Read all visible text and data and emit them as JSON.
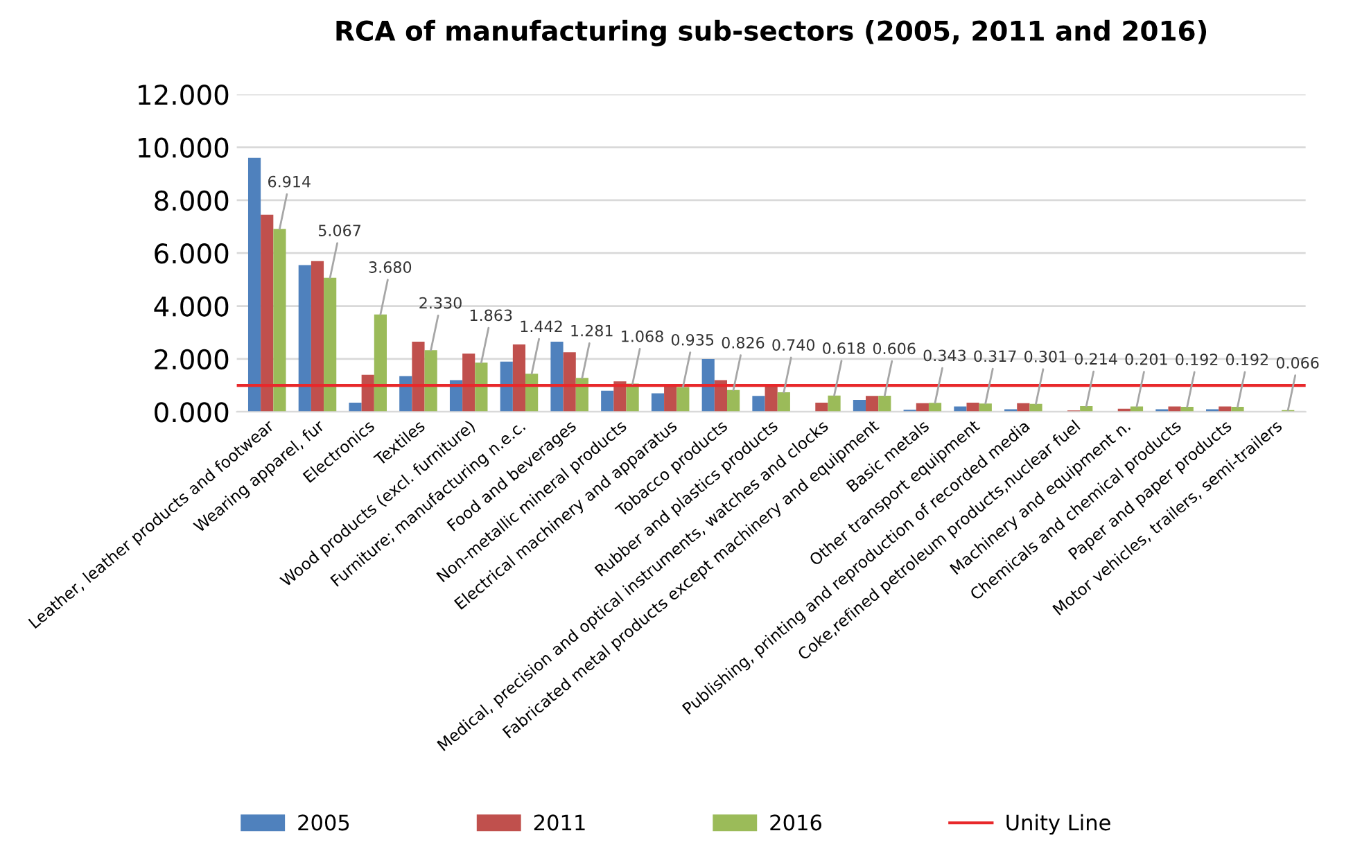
{
  "chart_data": {
    "type": "bar",
    "title": "RCA of manufacturing sub-sectors (2005, 2011 and 2016)",
    "categories": [
      "Leather, leather products and footwear",
      "Wearing apparel, fur",
      "Electronics",
      "Textiles",
      "Wood products (excl. furniture)",
      "Furniture; manufacturing n.e.c.",
      "Food and beverages",
      "Non-metallic mineral products",
      "Electrical machinery and apparatus",
      "Tobacco products",
      "Rubber and plastics products",
      "Medical, precision and optical instruments, watches and clocks",
      "Fabricated metal products except machinery and equipment",
      "Basic metals",
      "Other transport equipment",
      "Publishing, printing and reproduction of recorded media",
      "Coke,refined petroleum products,nuclear fuel",
      "Machinery and equipment n.",
      "Chemicals and chemical products",
      "Paper and paper products",
      "Motor vehicles, trailers, semi-trailers"
    ],
    "series": [
      {
        "name": "2005",
        "color": "#4f81bd",
        "values": [
          9.6,
          5.55,
          0.35,
          1.35,
          1.2,
          1.9,
          2.65,
          0.8,
          0.7,
          2.0,
          0.6,
          null,
          0.45,
          0.08,
          0.2,
          0.1,
          null,
          null,
          0.1,
          0.1,
          null
        ]
      },
      {
        "name": "2011",
        "color": "#c0504d",
        "values": [
          7.45,
          5.7,
          1.4,
          2.65,
          2.2,
          2.55,
          2.25,
          1.15,
          1.0,
          1.2,
          0.95,
          0.35,
          0.6,
          0.33,
          0.35,
          0.33,
          0.05,
          0.12,
          0.2,
          0.2,
          null
        ]
      },
      {
        "name": "2016",
        "color": "#9bbb59",
        "values": [
          6.914,
          5.067,
          3.68,
          2.33,
          1.863,
          1.442,
          1.281,
          1.068,
          0.935,
          0.826,
          0.74,
          0.618,
          0.606,
          0.343,
          0.317,
          0.301,
          0.214,
          0.201,
          0.192,
          0.192,
          0.066
        ],
        "value_labels": [
          "6.914",
          "5.067",
          "3.680",
          "2.330",
          "1.863",
          "1.442",
          "1.281",
          "1.068",
          "0.935",
          "0.826",
          "0.740",
          "0.618",
          "0.606",
          "0.343",
          "0.317",
          "0.301",
          "0.214",
          "0.201",
          "0.192",
          "0.192",
          "0.066"
        ]
      }
    ],
    "ref_lines": [
      {
        "axis": "y",
        "value": 1,
        "label": "Unity Line",
        "color": "#e8282b"
      }
    ],
    "ylim": [
      0,
      12
    ],
    "yticks": [
      {
        "value": 0,
        "label": "0.000"
      },
      {
        "value": 2,
        "label": "2.000"
      },
      {
        "value": 4,
        "label": "4.000"
      },
      {
        "value": 6,
        "label": "6.000"
      },
      {
        "value": 8,
        "label": "8.000"
      },
      {
        "value": 10,
        "label": "10.000"
      },
      {
        "value": 12,
        "label": "12.000"
      }
    ],
    "grid": "y",
    "legend": "bottom"
  }
}
